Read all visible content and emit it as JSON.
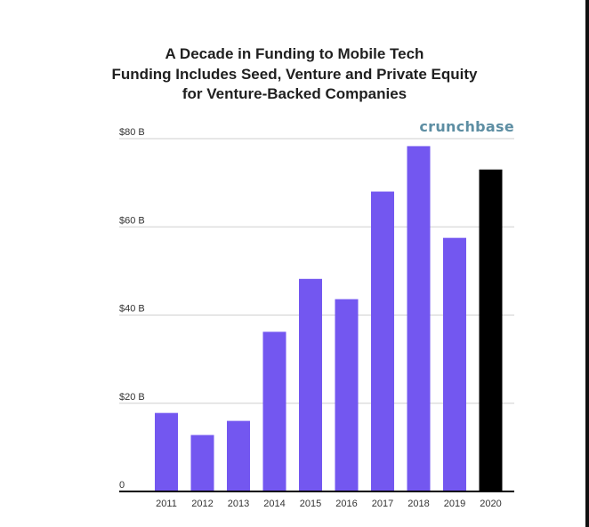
{
  "chart_data": {
    "type": "bar",
    "title_lines": [
      "A Decade in Funding to Mobile Tech",
      "Funding Includes Seed, Venture and Private Equity",
      "for Venture-Backed Companies"
    ],
    "brand": "crunchbase",
    "categories": [
      "2011",
      "2012",
      "2013",
      "2014",
      "2015",
      "2016",
      "2017",
      "2018",
      "2019",
      "2020"
    ],
    "values": [
      17.8,
      12.8,
      16.0,
      36.2,
      48.2,
      43.6,
      68.0,
      78.3,
      57.5,
      73.0
    ],
    "y_ticks": [
      {
        "value": 0,
        "label": "0"
      },
      {
        "value": 20,
        "label": "$20 B"
      },
      {
        "value": 40,
        "label": "$40 B"
      },
      {
        "value": 60,
        "label": "$60 B"
      },
      {
        "value": 80,
        "label": "$80 B"
      }
    ],
    "ylim": [
      0,
      80
    ],
    "grid": true,
    "colors": {
      "default_bar": "#7357f0",
      "highlight_bar": "#000000",
      "gridline": "#cfcfcf",
      "axis": "#000000",
      "brand": "#5d8ea3"
    },
    "highlight_category": "2020",
    "xlabel": "",
    "ylabel": ""
  }
}
